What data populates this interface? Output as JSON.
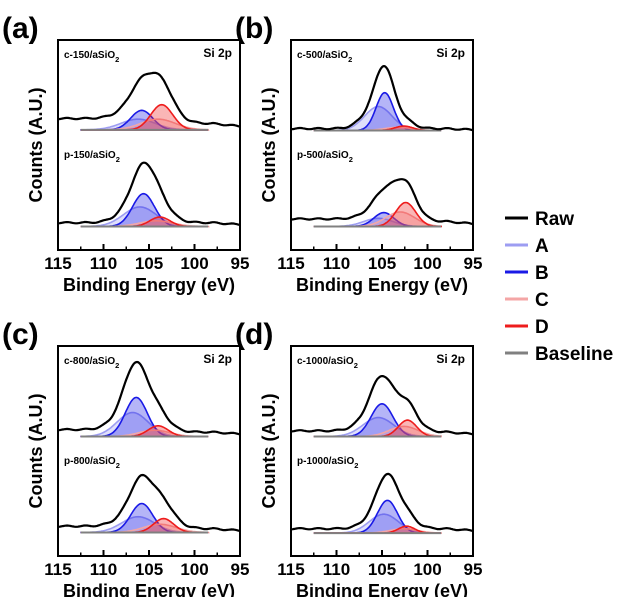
{
  "figure": {
    "legend": {
      "placement": "right",
      "items": [
        {
          "label": "Raw",
          "color": "#000000"
        },
        {
          "label": "A",
          "color": "#9d9df2"
        },
        {
          "label": "B",
          "color": "#1a1ae6"
        },
        {
          "label": "C",
          "color": "#f4a6a6"
        },
        {
          "label": "D",
          "color": "#ee1c1c"
        },
        {
          "label": "Baseline",
          "color": "#808080"
        }
      ]
    }
  },
  "chart_data": [
    {
      "type": "line",
      "panel_label": "(a)",
      "title": "Si 2p",
      "xlabel": "Binding Energy (eV)",
      "ylabel": "Counts (A.U.)",
      "xlim": [
        115,
        95
      ],
      "x_reversed": true,
      "x_ticks": [
        115,
        110,
        105,
        100,
        95
      ],
      "y_ticks_shown": false,
      "grid": false,
      "series": [
        {
          "name": "c-150/aSiO",
          "sub": "2",
          "raw": {
            "left": 0.22,
            "right": 0.14,
            "bg": 0.04
          },
          "peaks": [
            {
              "component": "A",
              "center": 106.2,
              "height": 0.17,
              "width": 1.9
            },
            {
              "component": "B",
              "center": 105.8,
              "height": 0.31,
              "width": 1.2
            },
            {
              "component": "C",
              "center": 104.0,
              "height": 0.17,
              "width": 1.9
            },
            {
              "component": "D",
              "center": 103.6,
              "height": 0.4,
              "width": 1.2
            }
          ]
        },
        {
          "name": "p-150/aSiO",
          "sub": "2",
          "raw": {
            "left": 0.1,
            "right": 0.1,
            "bg": 0.04
          },
          "peaks": [
            {
              "component": "A",
              "center": 106.0,
              "height": 0.31,
              "width": 1.8
            },
            {
              "component": "B",
              "center": 105.6,
              "height": 0.52,
              "width": 1.2
            },
            {
              "component": "C",
              "center": 104.2,
              "height": 0.09,
              "width": 1.8
            },
            {
              "component": "D",
              "center": 103.8,
              "height": 0.15,
              "width": 1.1
            }
          ]
        }
      ]
    },
    {
      "type": "line",
      "panel_label": "(b)",
      "title": "Si 2p",
      "xlabel": "Binding Energy (eV)",
      "ylabel": "Counts (A.U.)",
      "xlim": [
        115,
        95
      ],
      "x_reversed": true,
      "x_ticks": [
        115,
        110,
        105,
        100,
        95
      ],
      "y_ticks_shown": false,
      "grid": false,
      "series": [
        {
          "name": "c-500/aSiO",
          "sub": "2",
          "raw": {
            "left": 0.06,
            "right": 0.06,
            "bg": 0.03
          },
          "peaks": [
            {
              "component": "A",
              "center": 105.4,
              "height": 0.38,
              "width": 1.5
            },
            {
              "component": "B",
              "center": 104.7,
              "height": 0.6,
              "width": 0.95
            },
            {
              "component": "C",
              "center": 103.2,
              "height": 0.05,
              "width": 1.5
            },
            {
              "component": "D",
              "center": 102.6,
              "height": 0.07,
              "width": 1.0
            }
          ]
        },
        {
          "name": "p-500/aSiO",
          "sub": "2",
          "raw": {
            "left": 0.16,
            "right": 0.12,
            "bg": 0.04
          },
          "peaks": [
            {
              "component": "A",
              "center": 105.4,
              "height": 0.13,
              "width": 1.6
            },
            {
              "component": "B",
              "center": 104.8,
              "height": 0.22,
              "width": 1.1
            },
            {
              "component": "C",
              "center": 103.0,
              "height": 0.23,
              "width": 1.6
            },
            {
              "component": "D",
              "center": 102.4,
              "height": 0.38,
              "width": 1.1
            }
          ]
        }
      ]
    },
    {
      "type": "line",
      "panel_label": "(c)",
      "title": "Si 2p",
      "xlabel": "Binding Energy (eV)",
      "ylabel": "Counts (A.U.)",
      "xlim": [
        115,
        95
      ],
      "x_reversed": true,
      "x_ticks": [
        115,
        110,
        105,
        100,
        95
      ],
      "y_ticks_shown": false,
      "grid": false,
      "series": [
        {
          "name": "c-800/aSiO",
          "sub": "2",
          "raw": {
            "left": 0.14,
            "right": 0.1,
            "bg": 0.03
          },
          "peaks": [
            {
              "component": "A",
              "center": 106.8,
              "height": 0.38,
              "width": 1.7
            },
            {
              "component": "B",
              "center": 106.4,
              "height": 0.62,
              "width": 1.2
            },
            {
              "component": "C",
              "center": 104.4,
              "height": 0.1,
              "width": 1.7
            },
            {
              "component": "D",
              "center": 104.0,
              "height": 0.17,
              "width": 1.1
            }
          ]
        },
        {
          "name": "p-800/aSiO",
          "sub": "2",
          "raw": {
            "left": 0.14,
            "right": 0.1,
            "bg": 0.04
          },
          "peaks": [
            {
              "component": "A",
              "center": 106.2,
              "height": 0.25,
              "width": 1.8
            },
            {
              "component": "B",
              "center": 105.8,
              "height": 0.46,
              "width": 1.2
            },
            {
              "component": "C",
              "center": 103.8,
              "height": 0.13,
              "width": 1.8
            },
            {
              "component": "D",
              "center": 103.4,
              "height": 0.22,
              "width": 1.1
            }
          ]
        }
      ]
    },
    {
      "type": "line",
      "panel_label": "(d)",
      "title": "Si 2p",
      "xlabel": "Binding Energy (eV)",
      "ylabel": "Counts (A.U.)",
      "xlim": [
        115,
        95
      ],
      "x_reversed": true,
      "x_ticks": [
        115,
        110,
        105,
        100,
        95
      ],
      "y_ticks_shown": false,
      "grid": false,
      "series": [
        {
          "name": "c-1000/aSiO",
          "sub": "2",
          "raw": {
            "left": 0.12,
            "right": 0.1,
            "bg": 0.03
          },
          "peaks": [
            {
              "component": "A",
              "center": 105.4,
              "height": 0.3,
              "width": 1.7
            },
            {
              "component": "B",
              "center": 105.0,
              "height": 0.52,
              "width": 1.2
            },
            {
              "component": "C",
              "center": 102.6,
              "height": 0.16,
              "width": 1.6
            },
            {
              "component": "D",
              "center": 102.2,
              "height": 0.26,
              "width": 1.0
            }
          ]
        },
        {
          "name": "p-1000/aSiO",
          "sub": "2",
          "raw": {
            "left": 0.1,
            "right": 0.1,
            "bg": 0.03
          },
          "peaks": [
            {
              "component": "A",
              "center": 104.8,
              "height": 0.3,
              "width": 1.6
            },
            {
              "component": "B",
              "center": 104.4,
              "height": 0.52,
              "width": 1.1
            },
            {
              "component": "C",
              "center": 102.6,
              "height": 0.07,
              "width": 1.5
            },
            {
              "component": "D",
              "center": 102.3,
              "height": 0.11,
              "width": 0.9
            }
          ]
        }
      ]
    }
  ]
}
